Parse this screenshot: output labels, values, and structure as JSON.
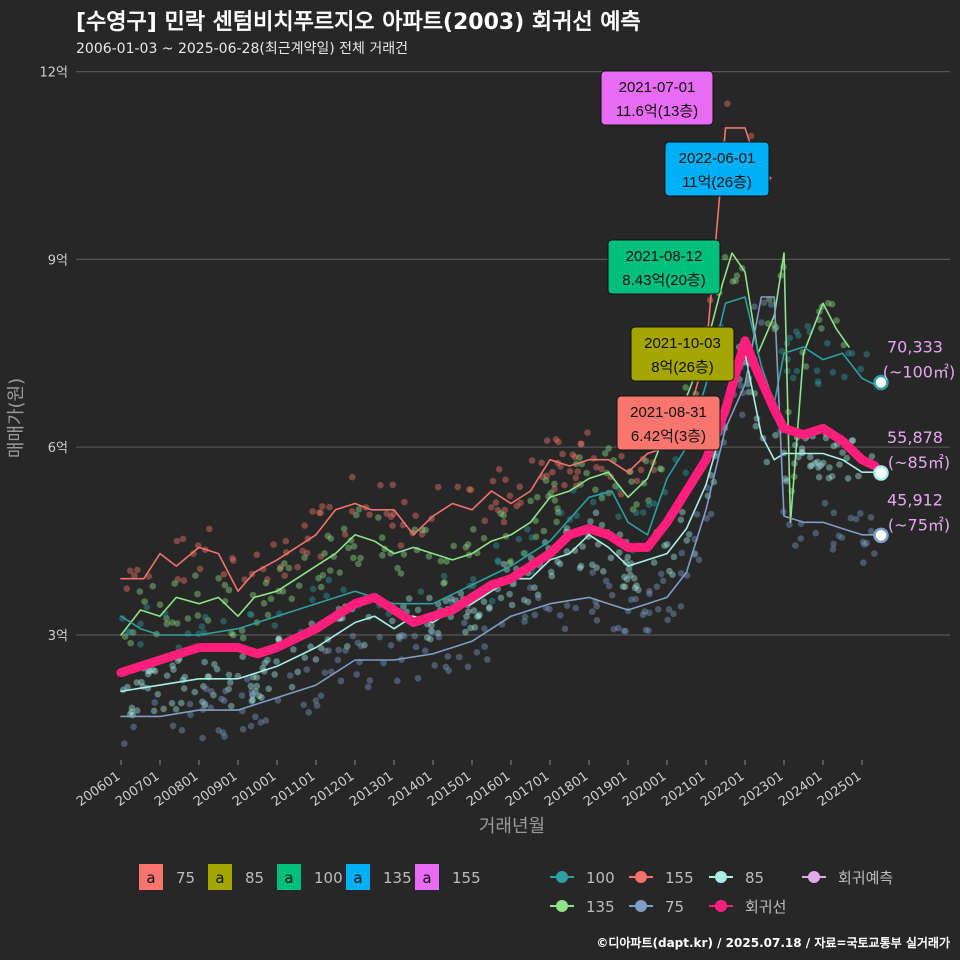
{
  "title": "[수영구] 민락 센텀비치푸르지오 아파트(2003) 회귀선 예측",
  "subtitle": "2006-01-03 ~ 2025-06-28(최근계약일) 전체 거래건",
  "footer": "©디아파트(dapt.kr) / 2025.07.18 / 자료=국토교통부 실거래가",
  "chart_data": {
    "type": "line",
    "xlabel": "거래년월",
    "ylabel": "매매가(원)",
    "x_range": [
      "2006-01",
      "2025-06"
    ],
    "xticks": [
      "200601",
      "200701",
      "200801",
      "200901",
      "201001",
      "201101",
      "201201",
      "201301",
      "201401",
      "201501",
      "201601",
      "201701",
      "201801",
      "201901",
      "202001",
      "202101",
      "202201",
      "202301",
      "202401",
      "202501"
    ],
    "ylim": [
      0.3,
      12.0
    ],
    "yticks": [
      {
        "v": 3,
        "label": "3억"
      },
      {
        "v": 6,
        "label": "6억"
      },
      {
        "v": 9,
        "label": "9억"
      },
      {
        "v": 12,
        "label": "12억"
      }
    ],
    "grid": true,
    "colors": {
      "s75": "#f8766d",
      "s85": "#a3a500",
      "s100": "#00bf7d",
      "s135": "#00b0f6",
      "s155": "#e76bf3",
      "l100": "#2e9fa3",
      "l135": "#8fe38a",
      "l155": "#f2736a",
      "l75": "#7f9ec6",
      "l85": "#a8efe6",
      "reg": "#ff1f7a",
      "pred": "#e5a8ef"
    },
    "series": [
      {
        "name": "155",
        "key": "l155",
        "points": [
          [
            "2006-01",
            3.9
          ],
          [
            "2006-08",
            3.9
          ],
          [
            "2007-01",
            4.3
          ],
          [
            "2007-06",
            4.1
          ],
          [
            "2008-01",
            4.4
          ],
          [
            "2008-07",
            4.3
          ],
          [
            "2009-01",
            3.7
          ],
          [
            "2009-06",
            4.0
          ],
          [
            "2010-01",
            4.2
          ],
          [
            "2011-01",
            4.6
          ],
          [
            "2011-07",
            5.0
          ],
          [
            "2012-01",
            5.1
          ],
          [
            "2012-06",
            5.0
          ],
          [
            "2013-01",
            5.0
          ],
          [
            "2013-07",
            4.6
          ],
          [
            "2014-01",
            4.9
          ],
          [
            "2014-07",
            5.1
          ],
          [
            "2015-01",
            5.0
          ],
          [
            "2015-07",
            5.3
          ],
          [
            "2016-01",
            5.1
          ],
          [
            "2016-07",
            5.3
          ],
          [
            "2017-01",
            5.8
          ],
          [
            "2017-07",
            5.7
          ],
          [
            "2018-01",
            5.8
          ],
          [
            "2018-07",
            5.8
          ],
          [
            "2019-01",
            5.6
          ],
          [
            "2019-07",
            5.9
          ],
          [
            "2020-01",
            6.0
          ],
          [
            "2020-07",
            6.4
          ],
          [
            "2021-01",
            7.5
          ],
          [
            "2021-07",
            11.1
          ],
          [
            "2022-01",
            11.1
          ],
          [
            "2022-06",
            10.3
          ],
          [
            "2022-09",
            10.3
          ]
        ]
      },
      {
        "name": "135",
        "key": "l135",
        "points": [
          [
            "2006-01",
            3.0
          ],
          [
            "2006-07",
            3.4
          ],
          [
            "2007-01",
            3.3
          ],
          [
            "2007-06",
            3.6
          ],
          [
            "2008-01",
            3.5
          ],
          [
            "2008-07",
            3.6
          ],
          [
            "2009-01",
            3.3
          ],
          [
            "2009-06",
            3.6
          ],
          [
            "2010-01",
            3.7
          ],
          [
            "2010-07",
            3.9
          ],
          [
            "2011-01",
            4.1
          ],
          [
            "2011-07",
            4.3
          ],
          [
            "2012-01",
            4.6
          ],
          [
            "2012-07",
            4.5
          ],
          [
            "2013-01",
            4.3
          ],
          [
            "2013-07",
            4.4
          ],
          [
            "2014-01",
            4.3
          ],
          [
            "2014-07",
            4.2
          ],
          [
            "2015-01",
            4.3
          ],
          [
            "2015-07",
            4.5
          ],
          [
            "2016-01",
            4.6
          ],
          [
            "2016-07",
            4.8
          ],
          [
            "2017-01",
            5.2
          ],
          [
            "2017-07",
            5.3
          ],
          [
            "2018-01",
            5.5
          ],
          [
            "2018-07",
            5.6
          ],
          [
            "2019-01",
            5.2
          ],
          [
            "2019-07",
            5.5
          ],
          [
            "2020-01",
            6.3
          ],
          [
            "2020-07",
            6.8
          ],
          [
            "2021-01",
            7.6
          ],
          [
            "2021-06",
            8.6
          ],
          [
            "2021-09",
            9.1
          ],
          [
            "2022-01",
            8.8
          ],
          [
            "2022-05",
            7.5
          ],
          [
            "2022-10",
            8.1
          ],
          [
            "2023-01",
            9.1
          ],
          [
            "2023-03",
            4.8
          ],
          [
            "2023-07",
            7.5
          ],
          [
            "2024-01",
            8.3
          ],
          [
            "2024-05",
            7.9
          ],
          [
            "2024-09",
            7.6
          ]
        ]
      },
      {
        "name": "100",
        "key": "l100",
        "points": [
          [
            "2006-01",
            3.3
          ],
          [
            "2006-07",
            3.1
          ],
          [
            "2007-01",
            3.0
          ],
          [
            "2008-01",
            3.0
          ],
          [
            "2009-01",
            3.1
          ],
          [
            "2010-01",
            3.3
          ],
          [
            "2011-01",
            3.5
          ],
          [
            "2012-01",
            3.7
          ],
          [
            "2013-01",
            3.5
          ],
          [
            "2014-01",
            3.5
          ],
          [
            "2015-01",
            3.8
          ],
          [
            "2016-01",
            4.1
          ],
          [
            "2017-01",
            4.5
          ],
          [
            "2018-01",
            5.2
          ],
          [
            "2018-08",
            5.3
          ],
          [
            "2019-01",
            4.8
          ],
          [
            "2019-07",
            4.6
          ],
          [
            "2020-01",
            5.5
          ],
          [
            "2020-07",
            6.0
          ],
          [
            "2021-01",
            7.0
          ],
          [
            "2021-07",
            8.3
          ],
          [
            "2022-01",
            8.4
          ],
          [
            "2022-06",
            7.3
          ],
          [
            "2022-10",
            6.7
          ],
          [
            "2023-01",
            7.5
          ],
          [
            "2023-07",
            7.6
          ],
          [
            "2024-01",
            7.4
          ],
          [
            "2024-07",
            7.5
          ],
          [
            "2025-01",
            7.1
          ],
          [
            "2025-05",
            7.0
          ]
        ]
      },
      {
        "name": "85",
        "key": "l85",
        "points": [
          [
            "2006-01",
            2.1
          ],
          [
            "2007-01",
            2.2
          ],
          [
            "2008-01",
            2.3
          ],
          [
            "2009-01",
            2.3
          ],
          [
            "2010-01",
            2.5
          ],
          [
            "2011-01",
            2.8
          ],
          [
            "2012-01",
            3.2
          ],
          [
            "2012-07",
            3.3
          ],
          [
            "2013-01",
            3.1
          ],
          [
            "2013-07",
            3.3
          ],
          [
            "2014-01",
            3.2
          ],
          [
            "2014-07",
            3.4
          ],
          [
            "2015-01",
            3.5
          ],
          [
            "2015-07",
            3.7
          ],
          [
            "2016-01",
            3.9
          ],
          [
            "2016-07",
            3.9
          ],
          [
            "2017-01",
            4.2
          ],
          [
            "2017-07",
            4.3
          ],
          [
            "2018-01",
            4.6
          ],
          [
            "2018-07",
            4.4
          ],
          [
            "2019-01",
            4.1
          ],
          [
            "2019-07",
            4.2
          ],
          [
            "2020-01",
            4.3
          ],
          [
            "2020-07",
            4.7
          ],
          [
            "2021-01",
            5.4
          ],
          [
            "2021-07",
            6.5
          ],
          [
            "2022-01",
            7.5
          ],
          [
            "2022-06",
            6.2
          ],
          [
            "2022-10",
            5.8
          ],
          [
            "2023-01",
            5.9
          ],
          [
            "2023-07",
            5.9
          ],
          [
            "2024-01",
            5.9
          ],
          [
            "2024-07",
            5.8
          ],
          [
            "2025-01",
            5.6
          ],
          [
            "2025-05",
            5.6
          ]
        ]
      },
      {
        "name": "75",
        "key": "l75",
        "points": [
          [
            "2006-01",
            1.7
          ],
          [
            "2007-01",
            1.7
          ],
          [
            "2008-01",
            1.8
          ],
          [
            "2009-01",
            1.8
          ],
          [
            "2010-01",
            2.0
          ],
          [
            "2011-01",
            2.2
          ],
          [
            "2012-01",
            2.6
          ],
          [
            "2013-01",
            2.6
          ],
          [
            "2014-01",
            2.7
          ],
          [
            "2015-01",
            2.9
          ],
          [
            "2016-01",
            3.3
          ],
          [
            "2017-01",
            3.5
          ],
          [
            "2018-01",
            3.6
          ],
          [
            "2018-07",
            3.5
          ],
          [
            "2019-01",
            3.4
          ],
          [
            "2019-07",
            3.5
          ],
          [
            "2020-01",
            3.6
          ],
          [
            "2020-07",
            4.0
          ],
          [
            "2021-01",
            5.0
          ],
          [
            "2021-07",
            6.3
          ],
          [
            "2022-01",
            7.0
          ],
          [
            "2022-06",
            8.4
          ],
          [
            "2022-10",
            8.4
          ],
          [
            "2023-01",
            4.9
          ],
          [
            "2023-07",
            4.8
          ],
          [
            "2024-01",
            4.8
          ],
          [
            "2024-07",
            4.7
          ],
          [
            "2025-01",
            4.6
          ],
          [
            "2025-05",
            4.6
          ]
        ]
      },
      {
        "name": "회귀선",
        "key": "reg",
        "points": [
          [
            "2006-01",
            2.4
          ],
          [
            "2007-01",
            2.6
          ],
          [
            "2008-01",
            2.8
          ],
          [
            "2009-01",
            2.8
          ],
          [
            "2009-07",
            2.7
          ],
          [
            "2010-01",
            2.8
          ],
          [
            "2011-01",
            3.1
          ],
          [
            "2012-01",
            3.5
          ],
          [
            "2012-07",
            3.6
          ],
          [
            "2013-01",
            3.4
          ],
          [
            "2013-07",
            3.2
          ],
          [
            "2014-01",
            3.3
          ],
          [
            "2014-07",
            3.4
          ],
          [
            "2015-01",
            3.6
          ],
          [
            "2015-07",
            3.8
          ],
          [
            "2016-01",
            3.9
          ],
          [
            "2016-07",
            4.1
          ],
          [
            "2017-01",
            4.3
          ],
          [
            "2017-07",
            4.6
          ],
          [
            "2018-01",
            4.7
          ],
          [
            "2018-07",
            4.6
          ],
          [
            "2019-01",
            4.4
          ],
          [
            "2019-07",
            4.4
          ],
          [
            "2020-01",
            4.8
          ],
          [
            "2020-07",
            5.3
          ],
          [
            "2021-01",
            5.8
          ],
          [
            "2021-07",
            6.6
          ],
          [
            "2022-01",
            7.7
          ],
          [
            "2022-04",
            7.3
          ],
          [
            "2022-10",
            6.6
          ],
          [
            "2023-01",
            6.3
          ],
          [
            "2023-07",
            6.2
          ],
          [
            "2024-01",
            6.3
          ],
          [
            "2024-07",
            6.1
          ],
          [
            "2025-01",
            5.8
          ],
          [
            "2025-05",
            5.7
          ]
        ]
      }
    ],
    "predictions": [
      {
        "size": "100",
        "x": "2025-05",
        "y": 7.0333,
        "value": "70,333",
        "unit": "(~100㎡)"
      },
      {
        "size": "85",
        "x": "2025-05",
        "y": 5.5878,
        "value": "55,878",
        "unit": "(~85㎡)"
      },
      {
        "size": "75",
        "x": "2025-05",
        "y": 4.5912,
        "value": "45,912",
        "unit": "(~75㎡)"
      }
    ],
    "callouts": [
      {
        "date": "2021-07-01",
        "price": "11.6억(13층)",
        "x": "2021-07",
        "y": 11.6,
        "color": "#e76bf3"
      },
      {
        "date": "2022-06-01",
        "price": "11억(26층)",
        "x": "2022-06",
        "y": 11.0,
        "color": "#00b0f6"
      },
      {
        "date": "2021-08-12",
        "price": "8.43억(20층)",
        "x": "2021-08",
        "y": 8.43,
        "color": "#00bf7d"
      },
      {
        "date": "2021-10-03",
        "price": "8억(26층)",
        "x": "2021-10",
        "y": 8.0,
        "color": "#a3a500"
      },
      {
        "date": "2021-08-31",
        "price": "6.42억(3층)",
        "x": "2021-08",
        "y": 6.42,
        "color": "#f8766d"
      }
    ],
    "legend_boxes": [
      {
        "glyph": "a",
        "label": "75",
        "color": "#f8766d"
      },
      {
        "glyph": "a",
        "label": "85",
        "color": "#a3a500"
      },
      {
        "glyph": "a",
        "label": "100",
        "color": "#00bf7d"
      },
      {
        "glyph": "a",
        "label": "135",
        "color": "#00b0f6"
      },
      {
        "glyph": "a",
        "label": "155",
        "color": "#e76bf3"
      }
    ],
    "legend_lines": [
      {
        "label": "100",
        "color": "#2e9fa3"
      },
      {
        "label": "155",
        "color": "#f2736a"
      },
      {
        "label": "85",
        "color": "#a8efe6"
      },
      {
        "label": "회귀예측",
        "color": "#e5a8ef"
      },
      {
        "label": "135",
        "color": "#8fe38a"
      },
      {
        "label": "75",
        "color": "#7f9ec6"
      },
      {
        "label": "회귀선",
        "color": "#ff1f7a"
      }
    ]
  }
}
